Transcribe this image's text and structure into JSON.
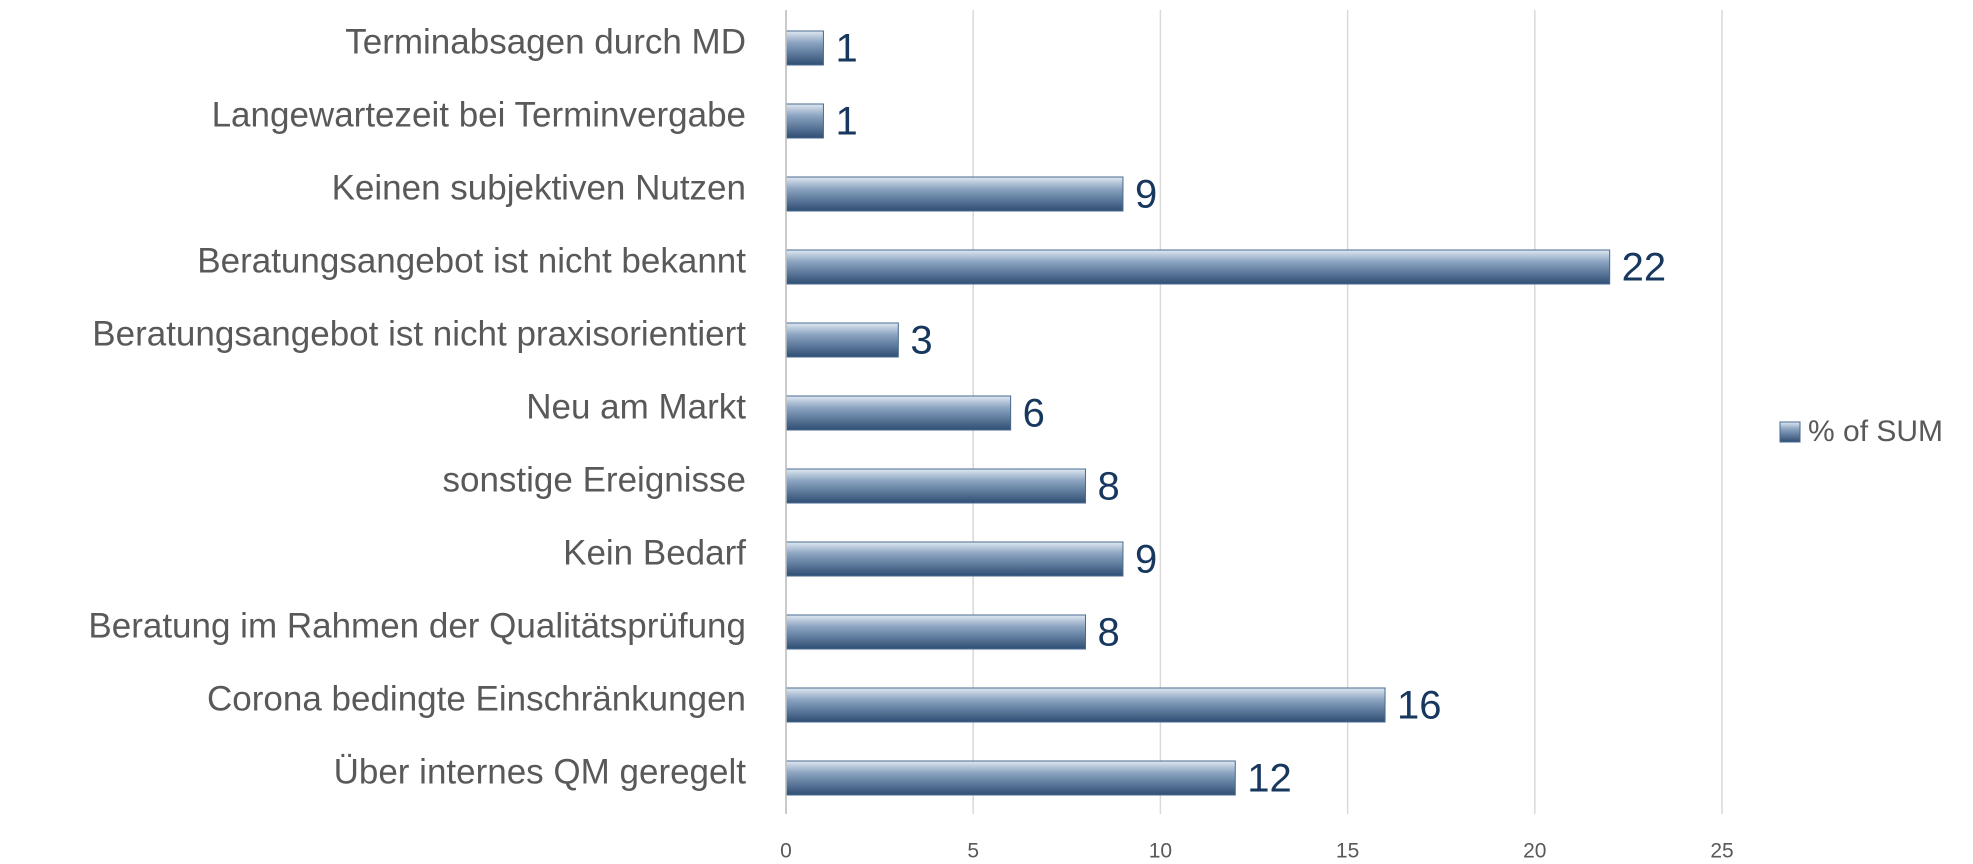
{
  "chart_data": {
    "type": "bar",
    "orientation": "horizontal",
    "categories": [
      "Terminabsagen durch MD",
      "Langewartezeit bei Terminvergabe",
      "Keinen subjektiven Nutzen",
      "Beratungsangebot ist nicht bekannt",
      "Beratungsangebot ist nicht praxisorientiert",
      "Neu am Markt",
      "sonstige Ereignisse",
      "Kein Bedarf",
      "Beratung im Rahmen der Qualitätsprüfung",
      "Corona bedingte Einschränkungen",
      "Über internes QM geregelt"
    ],
    "series": [
      {
        "name": "% of SUM",
        "color": "#4a6a90",
        "values": [
          1,
          1,
          9,
          22,
          3,
          6,
          8,
          9,
          8,
          16,
          12
        ]
      }
    ],
    "xlim": [
      0,
      25
    ],
    "xticks": [
      0,
      5,
      10,
      15,
      20,
      25
    ],
    "grid": true,
    "legend": "right"
  }
}
